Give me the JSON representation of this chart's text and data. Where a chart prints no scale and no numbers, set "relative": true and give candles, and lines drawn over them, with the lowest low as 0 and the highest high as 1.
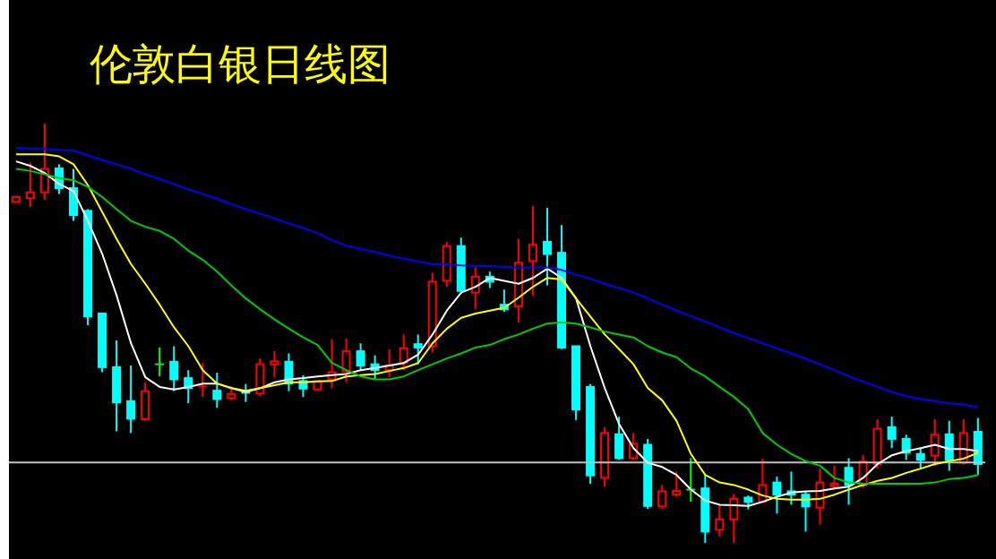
{
  "chart_data": {
    "type": "candlestick",
    "title": "伦敦白银日线图",
    "relative": true,
    "categories": [
      null,
      null,
      null,
      null,
      null,
      null,
      null,
      null,
      null,
      null,
      null,
      null,
      null,
      null,
      null,
      null,
      null,
      null,
      null,
      null,
      null,
      null,
      null,
      null,
      null,
      null,
      null,
      null,
      null,
      null,
      null,
      null,
      null,
      null,
      null,
      null,
      null,
      null,
      null,
      null,
      null,
      null,
      null,
      null,
      null,
      null,
      null,
      null,
      null,
      null,
      null,
      null,
      null,
      null,
      null,
      null,
      null,
      null,
      null,
      null,
      null,
      null,
      null,
      null,
      null,
      null,
      null,
      null
    ],
    "ohlc": [
      [
        0.813,
        0.828,
        0.811,
        0.825
      ],
      [
        0.822,
        0.907,
        0.801,
        0.836
      ],
      [
        0.836,
        1.0,
        0.818,
        0.892
      ],
      [
        0.893,
        0.903,
        0.832,
        0.846
      ],
      [
        0.846,
        0.892,
        0.768,
        0.782
      ],
      [
        0.792,
        0.796,
        0.519,
        0.54
      ],
      [
        0.547,
        0.547,
        0.407,
        0.419
      ],
      [
        0.419,
        0.483,
        0.266,
        0.335
      ],
      [
        0.338,
        0.423,
        0.262,
        0.296
      ],
      [
        0.295,
        0.383,
        0.291,
        0.362
      ],
      [
        0.426,
        0.466,
        0.397,
        0.426
      ],
      [
        0.432,
        0.469,
        0.362,
        0.39
      ],
      [
        0.393,
        0.412,
        0.333,
        0.369
      ],
      [
        0.369,
        0.429,
        0.348,
        0.373
      ],
      [
        0.363,
        0.406,
        0.322,
        0.343
      ],
      [
        0.345,
        0.373,
        0.34,
        0.355
      ],
      [
        0.363,
        0.379,
        0.336,
        0.358
      ],
      [
        0.356,
        0.44,
        0.35,
        0.426
      ],
      [
        0.426,
        0.457,
        0.395,
        0.433
      ],
      [
        0.432,
        0.452,
        0.362,
        0.38
      ],
      [
        0.386,
        0.4,
        0.348,
        0.368
      ],
      [
        0.366,
        0.386,
        0.362,
        0.386
      ],
      [
        0.39,
        0.486,
        0.369,
        0.407
      ],
      [
        0.409,
        0.487,
        0.383,
        0.457
      ],
      [
        0.457,
        0.476,
        0.412,
        0.423
      ],
      [
        0.426,
        0.447,
        0.39,
        0.412
      ],
      [
        0.412,
        0.462,
        0.395,
        0.423
      ],
      [
        0.429,
        0.497,
        0.412,
        0.464
      ],
      [
        0.474,
        0.497,
        0.426,
        0.466
      ],
      [
        0.469,
        0.644,
        0.454,
        0.623
      ],
      [
        0.625,
        0.718,
        0.611,
        0.708
      ],
      [
        0.708,
        0.728,
        0.594,
        0.601
      ],
      [
        0.597,
        0.657,
        0.558,
        0.635
      ],
      [
        0.635,
        0.647,
        0.608,
        0.623
      ],
      [
        0.568,
        0.604,
        0.551,
        0.557
      ],
      [
        0.564,
        0.725,
        0.526,
        0.668
      ],
      [
        0.672,
        0.803,
        0.59,
        0.711
      ],
      [
        0.718,
        0.799,
        0.614,
        0.689
      ],
      [
        0.692,
        0.758,
        0.462,
        0.466
      ],
      [
        0.469,
        0.469,
        0.293,
        0.318
      ],
      [
        0.372,
        0.379,
        0.141,
        0.161
      ],
      [
        0.155,
        0.276,
        0.134,
        0.262
      ],
      [
        0.259,
        0.301,
        0.198,
        0.202
      ],
      [
        0.202,
        0.262,
        0.198,
        0.236
      ],
      [
        0.234,
        0.248,
        0.081,
        0.088
      ],
      [
        0.087,
        0.138,
        0.081,
        0.123
      ],
      [
        0.115,
        0.17,
        0.11,
        0.124
      ],
      [
        0.127,
        0.202,
        0.098,
        0.127
      ],
      [
        0.13,
        0.162,
        0.0,
        0.027
      ],
      [
        0.031,
        0.091,
        0.016,
        0.056
      ],
      [
        0.056,
        0.117,
        0.0,
        0.105
      ],
      [
        0.108,
        0.113,
        0.08,
        0.098
      ],
      [
        0.098,
        0.201,
        0.095,
        0.138
      ],
      [
        0.144,
        0.158,
        0.07,
        0.115
      ],
      [
        0.123,
        0.17,
        0.091,
        0.115
      ],
      [
        0.115,
        0.123,
        0.027,
        0.087
      ],
      [
        0.084,
        0.177,
        0.044,
        0.144
      ],
      [
        0.135,
        0.184,
        0.127,
        0.141
      ],
      [
        0.179,
        0.202,
        0.091,
        0.138
      ],
      [
        0.138,
        0.209,
        0.131,
        0.194
      ],
      [
        0.188,
        0.295,
        0.177,
        0.272
      ],
      [
        0.276,
        0.301,
        0.226,
        0.248
      ],
      [
        0.248,
        0.258,
        0.198,
        0.215
      ],
      [
        0.212,
        0.226,
        0.177,
        0.198
      ],
      [
        0.208,
        0.295,
        0.184,
        0.258
      ],
      [
        0.259,
        0.291,
        0.172,
        0.198
      ],
      [
        0.191,
        0.295,
        0.187,
        0.262
      ],
      [
        0.265,
        0.298,
        0.162,
        0.188
      ]
    ],
    "colors": [
      "#ff0000",
      "#ff0000",
      "#ff0000",
      "#00ffff",
      "#00ffff",
      "#00ffff",
      "#00ffff",
      "#00ffff",
      "#00ffff",
      "#ff0000",
      "#00ff00",
      "#00ffff",
      "#00ffff",
      "#ff0000",
      "#00ffff",
      "#ff0000",
      "#00ffff",
      "#ff0000",
      "#ff0000",
      "#00ffff",
      "#00ffff",
      "#ff0000",
      "#ff0000",
      "#ff0000",
      "#00ffff",
      "#00ffff",
      "#ff0000",
      "#ff0000",
      "#00ffff",
      "#ff0000",
      "#ff0000",
      "#00ffff",
      "#ff0000",
      "#00ffff",
      "#00ffff",
      "#ff0000",
      "#ff0000",
      "#00ffff",
      "#00ffff",
      "#00ffff",
      "#00ffff",
      "#ff0000",
      "#00ffff",
      "#ff0000",
      "#00ffff",
      "#ff0000",
      "#ff0000",
      "#00ff00",
      "#00ffff",
      "#ff0000",
      "#ff0000",
      "#00ffff",
      "#ff0000",
      "#00ffff",
      "#00ffff",
      "#00ffff",
      "#ff0000",
      "#ff0000",
      "#00ffff",
      "#ff0000",
      "#ff0000",
      "#00ffff",
      "#00ffff",
      "#00ffff",
      "#ff0000",
      "#00ffff",
      "#ff0000",
      "#00ffff"
    ],
    "series": [
      {
        "type": "line",
        "color": "#ffffff",
        "values": [
          0.91,
          0.899,
          0.882,
          0.856,
          0.839,
          0.768,
          0.689,
          0.59,
          0.476,
          0.395,
          0.372,
          0.366,
          0.372,
          0.38,
          0.38,
          0.369,
          0.36,
          0.369,
          0.383,
          0.39,
          0.393,
          0.397,
          0.4,
          0.403,
          0.412,
          0.417,
          0.423,
          0.429,
          0.449,
          0.497,
          0.554,
          0.597,
          0.611,
          0.632,
          0.625,
          0.618,
          0.632,
          0.654,
          0.632,
          0.583,
          0.469,
          0.369,
          0.283,
          0.226,
          0.191,
          0.181,
          0.162,
          0.127,
          0.101,
          0.091,
          0.09,
          0.088,
          0.098,
          0.11,
          0.12,
          0.123,
          0.124,
          0.13,
          0.134,
          0.155,
          0.188,
          0.209,
          0.219,
          0.226,
          0.234,
          0.224,
          0.224,
          0.219
        ]
      },
      {
        "type": "line",
        "color": "#ffff00",
        "values": [
          0.927,
          0.927,
          0.927,
          0.922,
          0.903,
          0.853,
          0.789,
          0.725,
          0.665,
          0.618,
          0.568,
          0.514,
          0.469,
          0.412,
          0.38,
          0.369,
          0.363,
          0.369,
          0.376,
          0.383,
          0.383,
          0.385,
          0.386,
          0.397,
          0.4,
          0.403,
          0.41,
          0.417,
          0.429,
          0.476,
          0.511,
          0.537,
          0.547,
          0.554,
          0.561,
          0.585,
          0.611,
          0.632,
          0.628,
          0.583,
          0.54,
          0.497,
          0.462,
          0.426,
          0.369,
          0.34,
          0.291,
          0.212,
          0.162,
          0.144,
          0.138,
          0.127,
          0.113,
          0.105,
          0.103,
          0.103,
          0.105,
          0.115,
          0.127,
          0.138,
          0.148,
          0.155,
          0.167,
          0.177,
          0.188,
          0.195,
          0.201,
          0.215
        ]
      },
      {
        "type": "line",
        "color": "#00cc00",
        "values": [
          0.892,
          0.887,
          0.879,
          0.87,
          0.865,
          0.849,
          0.825,
          0.796,
          0.768,
          0.754,
          0.744,
          0.725,
          0.697,
          0.675,
          0.647,
          0.614,
          0.583,
          0.557,
          0.533,
          0.511,
          0.49,
          0.472,
          0.429,
          0.412,
          0.397,
          0.39,
          0.39,
          0.397,
          0.412,
          0.426,
          0.44,
          0.452,
          0.466,
          0.472,
          0.486,
          0.497,
          0.511,
          0.523,
          0.526,
          0.523,
          0.514,
          0.504,
          0.497,
          0.49,
          0.469,
          0.454,
          0.443,
          0.416,
          0.397,
          0.372,
          0.348,
          0.319,
          0.262,
          0.234,
          0.212,
          0.195,
          0.184,
          0.155,
          0.144,
          0.141,
          0.141,
          0.141,
          0.141,
          0.141,
          0.144,
          0.152,
          0.155,
          0.162
        ]
      },
      {
        "type": "line",
        "color": "#0000ff",
        "values": [
          0.942,
          0.94,
          0.939,
          0.937,
          0.936,
          0.924,
          0.913,
          0.903,
          0.892,
          0.879,
          0.868,
          0.856,
          0.843,
          0.832,
          0.821,
          0.808,
          0.796,
          0.785,
          0.774,
          0.762,
          0.751,
          0.739,
          0.722,
          0.709,
          0.701,
          0.694,
          0.685,
          0.678,
          0.671,
          0.665,
          0.664,
          0.662,
          0.661,
          0.66,
          0.658,
          0.657,
          0.657,
          0.657,
          0.651,
          0.64,
          0.63,
          0.618,
          0.608,
          0.597,
          0.583,
          0.568,
          0.554,
          0.541,
          0.528,
          0.514,
          0.5,
          0.489,
          0.476,
          0.464,
          0.452,
          0.439,
          0.426,
          0.412,
          0.397,
          0.385,
          0.372,
          0.36,
          0.35,
          0.343,
          0.338,
          0.333,
          0.33,
          0.323
        ]
      }
    ],
    "ref_lines": [
      {
        "axis": "y",
        "value": 0.192,
        "color": "#c0c0c0"
      }
    ]
  }
}
